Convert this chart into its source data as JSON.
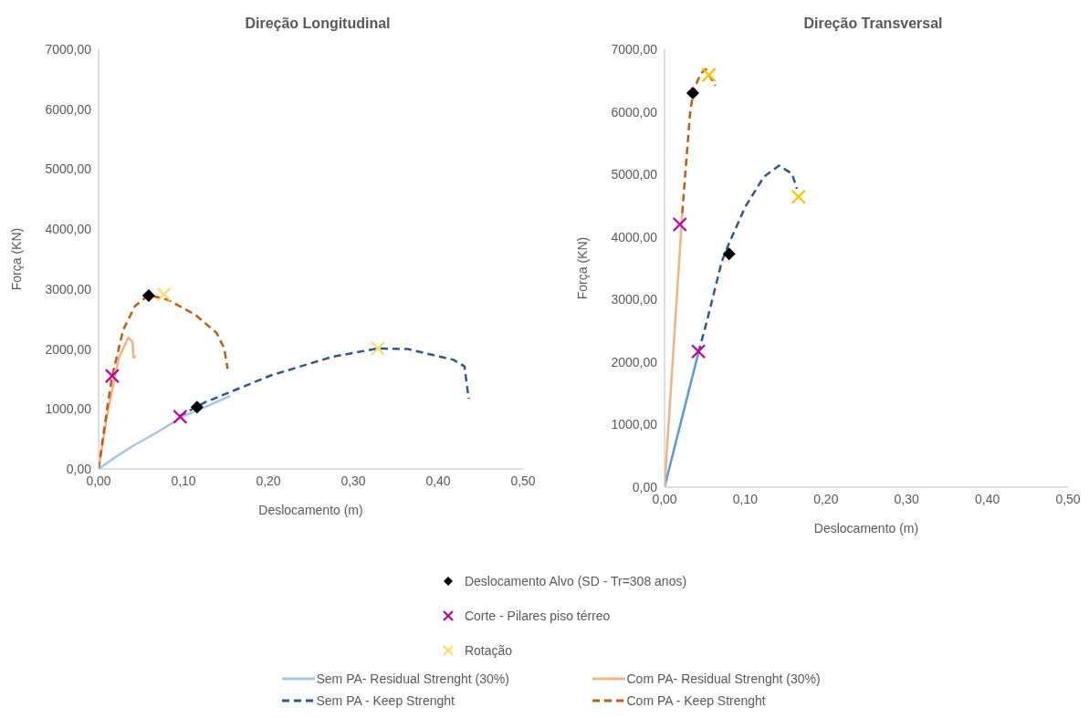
{
  "chart_data": [
    {
      "type": "line",
      "title": "Direção Longitudinal",
      "xlabel": "Deslocamento (m)",
      "ylabel": "Força (KN)",
      "xlim": [
        0,
        0.5
      ],
      "ylim": [
        0,
        7000
      ],
      "xticks": [
        {
          "value": 0,
          "label": "0,00"
        },
        {
          "value": 0.1,
          "label": "0,10"
        },
        {
          "value": 0.2,
          "label": "0,20"
        },
        {
          "value": 0.3,
          "label": "0,30"
        },
        {
          "value": 0.4,
          "label": "0,40"
        },
        {
          "value": 0.5,
          "label": "0,50"
        }
      ],
      "yticks": [
        {
          "value": 0,
          "label": "0,00"
        },
        {
          "value": 1000,
          "label": "1000,00"
        },
        {
          "value": 2000,
          "label": "2000,00"
        },
        {
          "value": 3000,
          "label": "3000,00"
        },
        {
          "value": 4000,
          "label": "4000,00"
        },
        {
          "value": 5000,
          "label": "5000,00"
        },
        {
          "value": 6000,
          "label": "6000,00"
        },
        {
          "value": 7000,
          "label": "7000,00"
        }
      ],
      "grid": false,
      "legend": "bottom",
      "series": [
        {
          "name": "Sem PA- Residual Strenght (30%)",
          "line_style": "solid",
          "marker": "none",
          "color": "#a9c4eb",
          "x": [
            0,
            0.02,
            0.04,
            0.07,
            0.1,
            0.13,
            0.155
          ],
          "values": [
            0,
            200,
            380,
            620,
            880,
            1060,
            1220
          ]
        },
        {
          "name": "Com PA- Residual Strenght (30%)",
          "line_style": "solid",
          "marker": "none",
          "color": "#f4b183",
          "x": [
            0,
            0.01,
            0.024,
            0.035,
            0.04,
            0.041,
            0.044
          ],
          "values": [
            0,
            900,
            1860,
            2190,
            2120,
            1860,
            1880
          ]
        },
        {
          "name": "Sem PA - Keep Strenght",
          "line_style": "dashed",
          "marker": "none",
          "color": "#2f5597",
          "x": [
            0.095,
            0.125,
            0.203,
            0.275,
            0.329,
            0.364,
            0.418,
            0.431,
            0.436
          ],
          "values": [
            880,
            1110,
            1560,
            1870,
            2010,
            2000,
            1820,
            1710,
            1170
          ]
        },
        {
          "name": "Com PA - Keep Strenght",
          "line_style": "dashed",
          "marker": "none",
          "color": "#c55a11",
          "x": [
            0,
            0.01,
            0.016,
            0.029,
            0.043,
            0.059,
            0.082,
            0.114,
            0.139,
            0.148,
            0.152
          ],
          "values": [
            0,
            1000,
            1550,
            2320,
            2720,
            2900,
            2820,
            2570,
            2270,
            2010,
            1670
          ]
        },
        {
          "name": "Deslocamento Alvo (SD - Tr=308 anos)",
          "type": "scatter",
          "marker": "diamond",
          "color": "#000000",
          "x": [
            0.059,
            0.116
          ],
          "values": [
            2890,
            1030
          ]
        },
        {
          "name": "Corte - Pilares piso térreo",
          "type": "scatter",
          "marker": "cross",
          "color": "#c000a0",
          "x": [
            0.016,
            0.096
          ],
          "values": [
            1550,
            870
          ]
        },
        {
          "name": "Rotação",
          "type": "scatter",
          "marker": "cross",
          "color": "#ffd966",
          "x": [
            0.077,
            0.329
          ],
          "values": [
            2910,
            2010
          ]
        }
      ]
    },
    {
      "type": "line",
      "title": "Direção Transversal",
      "xlabel": "Deslocamento (m)",
      "ylabel": "Força (KN)",
      "xlim": [
        0,
        0.5
      ],
      "ylim": [
        0,
        7000
      ],
      "xticks": [
        {
          "value": 0,
          "label": "0,00"
        },
        {
          "value": 0.1,
          "label": "0,10"
        },
        {
          "value": 0.2,
          "label": "0,20"
        },
        {
          "value": 0.3,
          "label": "0,30"
        },
        {
          "value": 0.4,
          "label": "0,40"
        },
        {
          "value": 0.5,
          "label": "0,50"
        }
      ],
      "yticks": [
        {
          "value": 0,
          "label": "0,00"
        },
        {
          "value": 1000,
          "label": "1000,00"
        },
        {
          "value": 2000,
          "label": "2000,00"
        },
        {
          "value": 3000,
          "label": "3000,00"
        },
        {
          "value": 4000,
          "label": "4000,00"
        },
        {
          "value": 5000,
          "label": "5000,00"
        },
        {
          "value": 6000,
          "label": "6000,00"
        },
        {
          "value": 7000,
          "label": "7000,00"
        }
      ],
      "grid": false,
      "series": [
        {
          "line_style": "solid",
          "marker": "none",
          "color": "#5b9bd5",
          "x": [
            0,
            0.042
          ],
          "values": [
            0,
            2150
          ]
        },
        {
          "line_style": "solid",
          "marker": "none",
          "color": "#f4b183",
          "x": [
            0,
            0.022
          ],
          "values": [
            0,
            4380
          ]
        },
        {
          "line_style": "dashed",
          "marker": "none",
          "color": "#2f5597",
          "x": [
            0.042,
            0.053,
            0.071,
            0.08,
            0.1,
            0.123,
            0.142,
            0.158,
            0.164
          ],
          "values": [
            2150,
            2680,
            3610,
            3900,
            4480,
            4960,
            5140,
            5010,
            4770
          ]
        },
        {
          "line_style": "dashed",
          "marker": "none",
          "color": "#c55a11",
          "x": [
            0.022,
            0.026,
            0.032,
            0.037,
            0.045,
            0.051,
            0.063
          ],
          "values": [
            4380,
            5060,
            6030,
            6380,
            6610,
            6680,
            6420
          ]
        },
        {
          "type": "scatter",
          "marker": "diamond",
          "color": "#000000",
          "x": [
            0.035,
            0.08
          ],
          "values": [
            6300,
            3730
          ]
        },
        {
          "type": "scatter",
          "marker": "cross",
          "color": "#c000a0",
          "x": [
            0.019,
            0.042
          ],
          "values": [
            4200,
            2170
          ]
        },
        {
          "type": "scatter",
          "marker": "cross",
          "color": "#ffc000",
          "x": [
            0.055,
            0.166
          ],
          "values": [
            6590,
            4640
          ]
        }
      ]
    }
  ]
}
